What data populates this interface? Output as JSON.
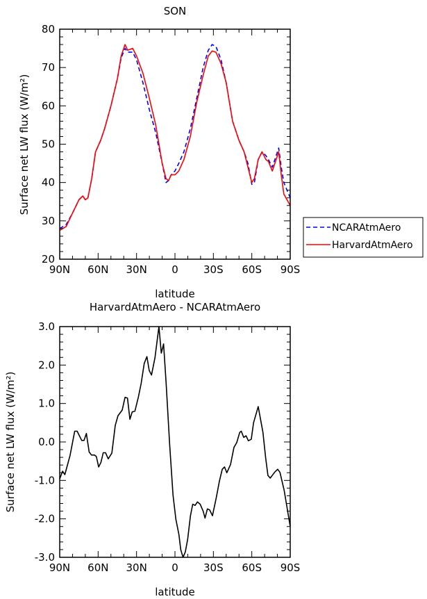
{
  "colors": {
    "ncar": "#0000ff",
    "harvard": "#ff0000",
    "diff": "#000000"
  },
  "chart_data": [
    {
      "type": "line",
      "title": "SON",
      "xlabel": "latitude",
      "ylabel": "Surface net LW flux (W/m²)",
      "xlim": [
        90,
        -90
      ],
      "ylim": [
        20,
        80
      ],
      "xticks": [
        90,
        60,
        30,
        0,
        -30,
        -60,
        -90
      ],
      "xtick_labels": [
        "90N",
        "60N",
        "30N",
        "0",
        "30S",
        "60S",
        "90S"
      ],
      "yticks": [
        20,
        30,
        40,
        50,
        60,
        70,
        80
      ],
      "ytick_labels": [
        "20",
        "30",
        "40",
        "50",
        "60",
        "70",
        "80"
      ],
      "legend_position": "right",
      "x": [
        90,
        85,
        80,
        75,
        72,
        70,
        68,
        65,
        62,
        58,
        55,
        50,
        45,
        42,
        39,
        37,
        33,
        30,
        25,
        20,
        15,
        10,
        7,
        5,
        3,
        0,
        -3,
        -7,
        -12,
        -17,
        -22,
        -26,
        -29,
        -32,
        -36,
        -40,
        -45,
        -50,
        -54,
        -57,
        -60,
        -62,
        -65,
        -68,
        -71,
        -73,
        -76,
        -78,
        -81,
        -83,
        -85,
        -90
      ],
      "series": [
        {
          "name": "NCARAtmAero",
          "style": "dashed",
          "values": [
            28,
            29,
            32,
            35.5,
            36.5,
            35.5,
            36,
            41,
            48,
            51,
            54,
            60,
            67,
            72.5,
            75,
            74,
            74,
            72,
            66,
            59,
            53,
            45,
            40,
            40.5,
            42,
            43,
            45,
            48,
            54,
            62,
            70,
            74.5,
            76,
            75.5,
            72,
            66,
            56,
            51,
            48,
            45,
            39.5,
            40,
            46,
            48,
            47,
            46,
            44,
            46,
            49,
            44,
            40,
            36
          ]
        },
        {
          "name": "HarvardAtmAero",
          "style": "solid",
          "values": [
            27.5,
            28.5,
            32,
            35.5,
            36.5,
            35.5,
            36,
            41,
            48,
            51,
            54,
            60,
            67,
            73,
            76,
            74.5,
            75,
            73,
            68.5,
            62,
            55,
            45,
            41,
            40.5,
            42,
            42,
            43,
            46,
            52,
            61,
            68,
            73,
            74.3,
            74,
            71,
            66,
            56,
            51,
            48,
            44,
            40,
            41,
            46,
            48,
            46,
            45.5,
            43,
            45,
            48,
            42,
            37,
            34
          ]
        }
      ]
    },
    {
      "type": "line",
      "title": "HarvardAtmAero - NCARAtmAero",
      "xlabel": "latitude",
      "ylabel": "Surface net LW flux (W/m²)",
      "xlim": [
        90,
        -90
      ],
      "ylim": [
        -3.0,
        3.0
      ],
      "xticks": [
        90,
        60,
        30,
        0,
        -30,
        -60,
        -90
      ],
      "xtick_labels": [
        "90N",
        "60N",
        "30N",
        "0",
        "30S",
        "60S",
        "90S"
      ],
      "yticks": [
        -3,
        -2,
        -1,
        0,
        1,
        2,
        3
      ],
      "ytick_labels": [
        "-3.0",
        "-2.0",
        "-1.0",
        "0.0",
        "1.0",
        "2.0",
        "3.0"
      ],
      "x": [
        90,
        87.8,
        86,
        81.9,
        78.3,
        76.4,
        72.8,
        71,
        69.2,
        67,
        65.2,
        62.9,
        61.4,
        59.6,
        57.8,
        56,
        54.2,
        52.1,
        49.3,
        46.6,
        44.5,
        41.2,
        39,
        37.1,
        35.2,
        33.4,
        31.3,
        28.6,
        26.4,
        24,
        21.9,
        20.1,
        18.3,
        15.6,
        12.5,
        10.7,
        8.9,
        6.9,
        4.2,
        1.5,
        -0.7,
        -3.1,
        -4.5,
        -6.3,
        -8.1,
        -9.9,
        -12.1,
        -13.9,
        -15.7,
        -17.5,
        -19.7,
        -22,
        -23.5,
        -25.3,
        -27.1,
        -29.3,
        -32.3,
        -34.7,
        -36.9,
        -38.7,
        -40.5,
        -43.4,
        -46.1,
        -48.2,
        -50.6,
        -51.8,
        -53.7,
        -55.5,
        -57.3,
        -59.6,
        -61.4,
        -65,
        -68.7,
        -70.8,
        -72.6,
        -74.4,
        -78,
        -80.2,
        -82,
        -85.3,
        -90
      ],
      "series": [
        {
          "name": "HarvardAtmAero - NCARAtmAero",
          "style": "solid",
          "values": [
            -0.96,
            -0.76,
            -0.85,
            -0.35,
            0.28,
            0.28,
            0.04,
            0.04,
            0.22,
            -0.26,
            -0.34,
            -0.34,
            -0.38,
            -0.65,
            -0.53,
            -0.28,
            -0.28,
            -0.44,
            -0.29,
            0.43,
            0.68,
            0.83,
            1.16,
            1.14,
            0.59,
            0.78,
            0.8,
            1.16,
            1.52,
            2.04,
            2.22,
            1.86,
            1.74,
            2.19,
            3.0,
            2.31,
            2.55,
            1.52,
            -0.05,
            -1.38,
            -2.01,
            -2.41,
            -2.8,
            -3.0,
            -2.86,
            -2.53,
            -1.92,
            -1.62,
            -1.65,
            -1.56,
            -1.62,
            -1.8,
            -1.98,
            -1.74,
            -1.77,
            -1.92,
            -1.44,
            -1.02,
            -0.71,
            -0.65,
            -0.8,
            -0.59,
            -0.14,
            -0.02,
            0.25,
            0.28,
            0.12,
            0.16,
            0.03,
            0.07,
            0.5,
            0.92,
            0.25,
            -0.41,
            -0.87,
            -0.94,
            -0.78,
            -0.71,
            -0.79,
            -1.26,
            -2.2
          ]
        }
      ]
    }
  ]
}
